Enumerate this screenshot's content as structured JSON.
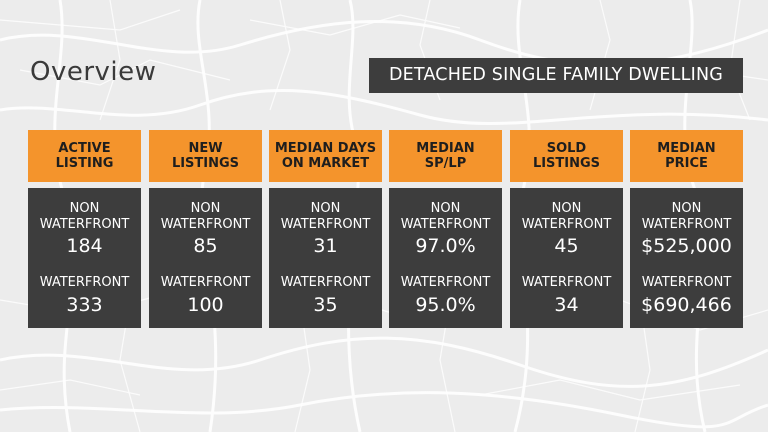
{
  "page": {
    "title": "Overview",
    "badge": "DETACHED SINGLE FAMILY DWELLING"
  },
  "labels": {
    "non_waterfront_line1": "NON",
    "non_waterfront_line2": "WATERFRONT",
    "waterfront": "WATERFRONT"
  },
  "cards": [
    {
      "title_line1": "ACTIVE",
      "title_line2": "LISTING",
      "non_waterfront": "184",
      "waterfront": "333"
    },
    {
      "title_line1": "NEW",
      "title_line2": "LISTINGS",
      "non_waterfront": "85",
      "waterfront": "100"
    },
    {
      "title_line1": "MEDIAN DAYS",
      "title_line2": "ON MARKET",
      "non_waterfront": "31",
      "waterfront": "35"
    },
    {
      "title_line1": "MEDIAN",
      "title_line2": "SP/LP",
      "non_waterfront": "97.0%",
      "waterfront": "95.0%"
    },
    {
      "title_line1": "SOLD",
      "title_line2": "LISTINGS",
      "non_waterfront": "45",
      "waterfront": "34"
    },
    {
      "title_line1": "MEDIAN",
      "title_line2": "PRICE",
      "non_waterfront": "$525,000",
      "waterfront": "$690,466"
    }
  ],
  "colors": {
    "accent": "#f4942c",
    "panel": "#3d3d3d",
    "background": "#ececec"
  }
}
